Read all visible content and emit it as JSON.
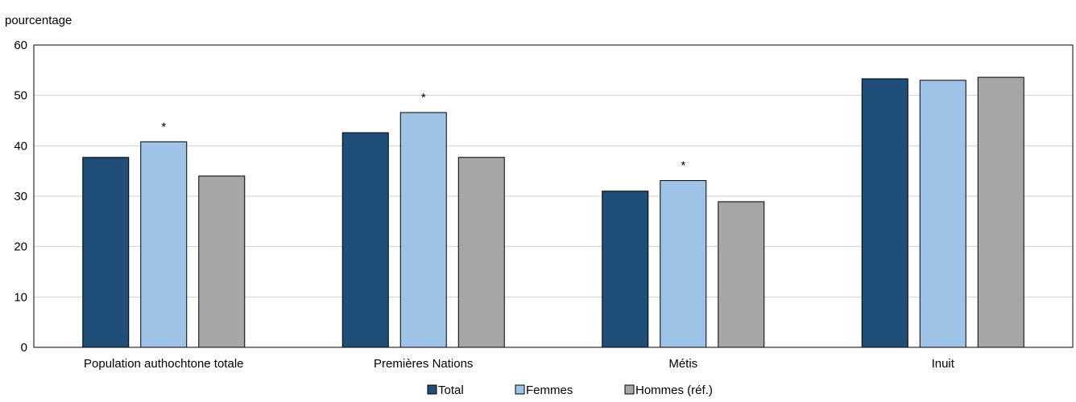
{
  "chart_data": {
    "type": "bar",
    "ylabel": "pourcentage",
    "ylim": [
      0,
      60
    ],
    "yticks": [
      0,
      10,
      20,
      30,
      40,
      50,
      60
    ],
    "grid": true,
    "legend_position": "bottom",
    "categories": [
      "Population authochtone totale",
      "Premières Nations",
      "Métis",
      "Inuit"
    ],
    "series": [
      {
        "name": "Total",
        "color": "#1f4e79",
        "values": [
          37.7,
          42.6,
          31.0,
          53.3
        ]
      },
      {
        "name": "Femmes",
        "color": "#9dc3e6",
        "values": [
          40.8,
          46.6,
          33.1,
          53.0
        ]
      },
      {
        "name": "Hommes (réf.)",
        "color": "#a6a6a6",
        "values": [
          34.0,
          37.7,
          28.9,
          53.6
        ]
      }
    ],
    "annotations": [
      {
        "category_index": 0,
        "series_index": 1,
        "text": "*"
      },
      {
        "category_index": 1,
        "series_index": 1,
        "text": "*"
      },
      {
        "category_index": 2,
        "series_index": 1,
        "text": "*"
      }
    ]
  }
}
